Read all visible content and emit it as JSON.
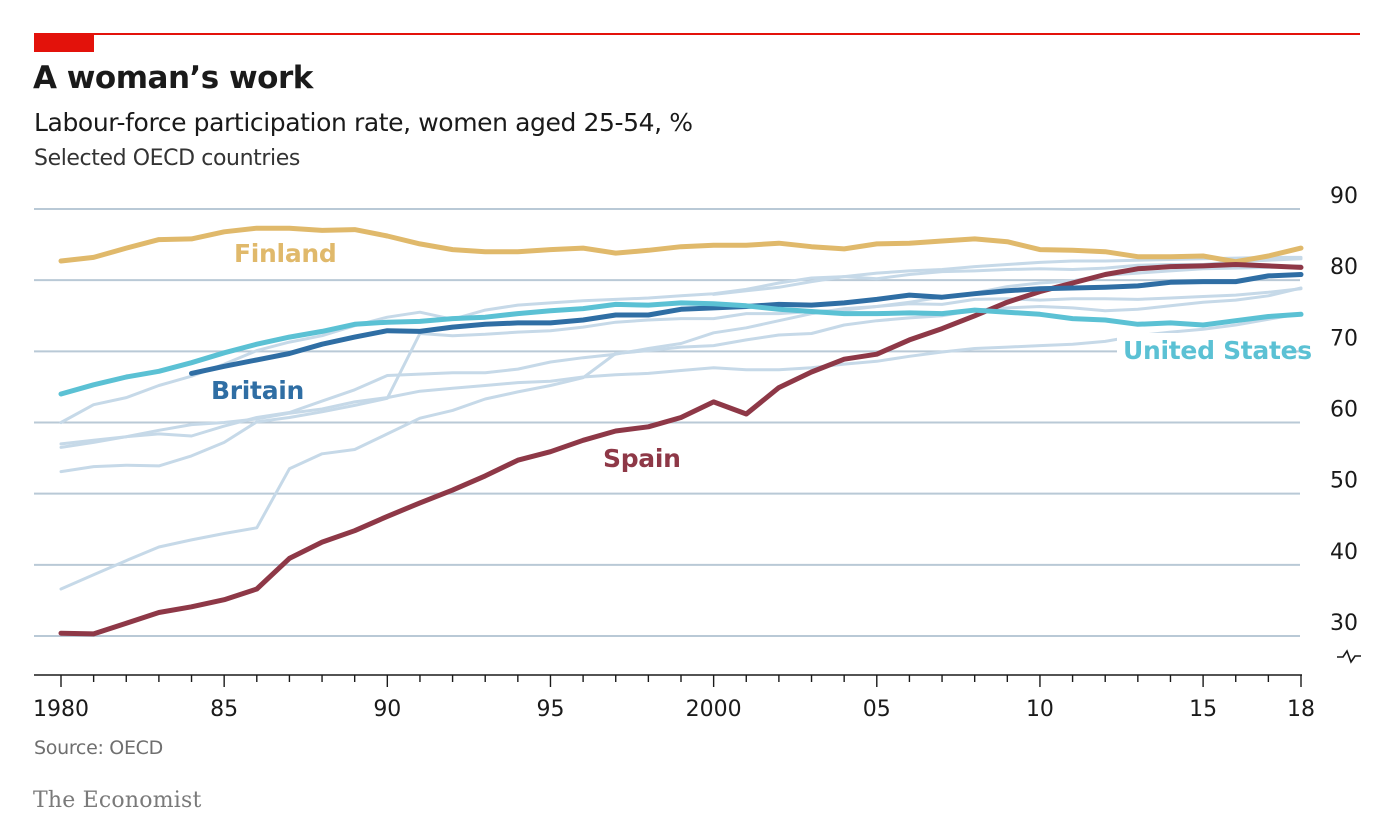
{
  "header": {
    "title": "A woman’s work",
    "subtitle": "Labour-force participation rate, women aged 25-54, %",
    "subsubtitle": "Selected OECD countries"
  },
  "footer": {
    "source": "Source: OECD",
    "brand": "The Economist"
  },
  "chart_data": {
    "type": "line",
    "title": "A woman’s work",
    "subtitle": "Labour-force participation rate, women aged 25-54, %",
    "xlim": [
      1980,
      2018
    ],
    "ylim": [
      30,
      90
    ],
    "axis_break": "below 30",
    "y_ticks": [
      30,
      40,
      50,
      60,
      70,
      80,
      90
    ],
    "y_tick_labels": [
      "30",
      "40",
      "50",
      "60",
      "70",
      "80",
      "90"
    ],
    "x_ticks": [
      1980,
      1985,
      1990,
      1995,
      2000,
      2005,
      2010,
      2015,
      2018
    ],
    "x_tick_labels": [
      "1980",
      "85",
      "90",
      "95",
      "2000",
      "05",
      "10",
      "15",
      "18"
    ],
    "grid": "horizontal",
    "x": [
      1980,
      1981,
      1982,
      1983,
      1984,
      1985,
      1986,
      1987,
      1988,
      1989,
      1990,
      1991,
      1992,
      1993,
      1994,
      1995,
      1996,
      1997,
      1998,
      1999,
      2000,
      2001,
      2002,
      2003,
      2004,
      2005,
      2006,
      2007,
      2008,
      2009,
      2010,
      2011,
      2012,
      2013,
      2014,
      2015,
      2016,
      2017,
      2018
    ],
    "series": [
      {
        "name": "Finland",
        "color": "#e0b96b",
        "values": [
          82.7,
          83.2,
          84.5,
          85.7,
          85.8,
          86.8,
          87.3,
          87.3,
          87.0,
          87.1,
          86.2,
          85.1,
          84.3,
          84.0,
          84.0,
          84.3,
          84.5,
          83.8,
          84.2,
          84.7,
          84.9,
          84.9,
          85.2,
          84.7,
          84.4,
          85.1,
          85.2,
          85.5,
          85.8,
          85.4,
          84.3,
          84.2,
          84.0,
          83.3,
          83.3,
          83.4,
          82.6,
          83.4,
          84.5
        ]
      },
      {
        "name": "Britain",
        "color": "#2f6ea4",
        "values": [
          null,
          null,
          null,
          null,
          66.9,
          67.9,
          68.8,
          69.7,
          71.0,
          72.0,
          72.9,
          72.8,
          73.4,
          73.8,
          74.0,
          74.0,
          74.4,
          75.1,
          75.1,
          75.9,
          76.1,
          76.3,
          76.6,
          76.5,
          76.8,
          77.3,
          77.9,
          77.6,
          78.1,
          78.5,
          78.8,
          78.9,
          79.0,
          79.2,
          79.7,
          79.8,
          79.8,
          80.6,
          80.8
        ]
      },
      {
        "name": "United States",
        "color": "#5bc1d4",
        "values": [
          64.0,
          65.3,
          66.4,
          67.2,
          68.4,
          69.8,
          71.0,
          72.0,
          72.8,
          73.8,
          74.1,
          74.2,
          74.6,
          74.8,
          75.3,
          75.7,
          76.0,
          76.6,
          76.5,
          76.8,
          76.7,
          76.4,
          75.9,
          75.6,
          75.3,
          75.3,
          75.4,
          75.3,
          75.8,
          75.5,
          75.2,
          74.6,
          74.4,
          73.8,
          74.0,
          73.7,
          74.3,
          74.9,
          75.2
        ]
      },
      {
        "name": "Spain",
        "color": "#8e3847",
        "values": [
          30.4,
          30.3,
          31.8,
          33.3,
          34.1,
          35.1,
          36.6,
          40.9,
          43.2,
          44.8,
          46.8,
          48.7,
          50.5,
          52.5,
          54.7,
          55.9,
          57.5,
          58.8,
          59.4,
          60.7,
          62.9,
          61.2,
          64.9,
          67.1,
          68.9,
          69.6,
          71.6,
          73.2,
          75.0,
          76.9,
          78.4,
          79.6,
          80.8,
          81.6,
          81.9,
          82.0,
          82.2,
          82.0,
          81.8
        ]
      },
      {
        "name": "",
        "color": "#c6d9e8",
        "values": [
          36.6,
          38.6,
          40.6,
          42.5,
          43.5,
          44.4,
          45.2,
          53.5,
          55.6,
          56.2,
          58.4,
          60.6,
          61.7,
          63.3,
          64.3,
          65.2,
          66.3,
          69.7,
          70.1,
          70.6,
          70.8,
          71.6,
          72.3,
          72.5,
          73.7,
          74.3,
          74.7,
          75.0,
          75.8,
          76.1,
          76.3,
          76.1,
          75.7,
          75.9,
          76.4,
          76.9,
          77.2,
          77.8,
          78.9
        ]
      },
      {
        "name": "",
        "color": "#c6d9e8",
        "values": [
          53.1,
          53.8,
          54.0,
          53.9,
          55.3,
          57.2,
          60.1,
          60.7,
          61.5,
          62.4,
          63.4,
          72.5,
          72.2,
          72.4,
          72.7,
          72.9,
          73.4,
          74.1,
          74.4,
          74.6,
          74.6,
          75.3,
          75.3,
          75.6,
          75.8,
          76.3,
          76.7,
          76.6,
          77.3,
          77.4,
          77.2,
          77.4,
          77.4,
          77.3,
          77.5,
          77.7,
          77.9,
          78.3,
          78.8
        ]
      },
      {
        "name": "",
        "color": "#c6d9e8",
        "values": [
          56.5,
          57.2,
          58.0,
          58.4,
          58.1,
          59.5,
          60.7,
          61.4,
          63.0,
          64.6,
          66.6,
          66.8,
          67.0,
          67.0,
          67.5,
          68.5,
          69.1,
          69.6,
          70.4,
          71.1,
          72.6,
          73.3,
          74.3,
          75.3,
          76.0,
          76.3,
          76.9,
          77.6,
          78.2,
          79.1,
          79.6,
          79.9,
          80.7,
          81.0,
          81.3,
          81.6,
          81.7,
          81.8,
          82.0
        ]
      },
      {
        "name": "",
        "color": "#c6d9e8",
        "values": [
          60.0,
          62.5,
          63.5,
          65.2,
          66.5,
          68.2,
          70.1,
          71.3,
          72.2,
          73.6,
          74.8,
          75.5,
          74.5,
          75.8,
          76.5,
          76.8,
          77.1,
          77.3,
          77.5,
          77.8,
          78.1,
          78.7,
          79.6,
          80.3,
          80.5,
          80.2,
          80.8,
          81.2,
          81.3,
          81.5,
          81.6,
          81.5,
          81.7,
          82.1,
          82.2,
          82.2,
          82.6,
          82.8,
          83.0
        ]
      },
      {
        "name": "",
        "color": "#c6d9e8",
        "values": [
          57.0,
          57.5,
          58.0,
          58.9,
          59.7,
          60.0,
          60.5,
          61.3,
          61.9,
          62.9,
          63.5,
          64.4,
          64.8,
          65.2,
          65.6,
          65.8,
          66.4,
          66.7,
          66.9,
          67.3,
          67.7,
          67.4,
          67.4,
          67.7,
          68.2,
          68.6,
          69.3,
          69.9,
          70.4,
          70.6,
          70.8,
          71.0,
          71.4,
          72.2,
          72.7,
          73.1,
          73.7,
          74.5,
          75.3
        ]
      },
      {
        "name": "",
        "color": "#c6d9e8",
        "values": [
          null,
          null,
          null,
          null,
          null,
          null,
          null,
          null,
          null,
          null,
          null,
          null,
          null,
          null,
          null,
          null,
          null,
          null,
          null,
          null,
          78.0,
          78.5,
          79.0,
          79.8,
          80.5,
          81.0,
          81.3,
          81.5,
          81.9,
          82.2,
          82.5,
          82.7,
          82.7,
          82.8,
          82.9,
          83.0,
          83.1,
          83.2,
          83.2
        ]
      }
    ],
    "series_labels": [
      {
        "series": 0,
        "text": "Finland"
      },
      {
        "series": 1,
        "text": "Britain"
      },
      {
        "series": 2,
        "text": "United States"
      },
      {
        "series": 3,
        "text": "Spain"
      }
    ]
  }
}
